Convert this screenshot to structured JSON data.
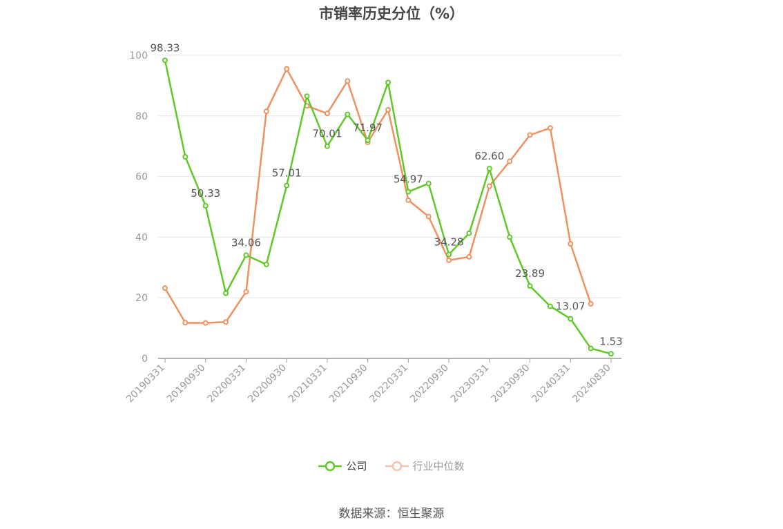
{
  "title": "市销率历史分位（%）",
  "source": "数据来源：恒生聚源",
  "chart_data": {
    "type": "line",
    "title": "市销率历史分位（%）",
    "ylim": [
      0,
      100
    ],
    "yticks": [
      0,
      20,
      40,
      60,
      80,
      100
    ],
    "x": [
      "20190331",
      "20190630",
      "20190930",
      "20191231",
      "20200331",
      "20200630",
      "20200930",
      "20201231",
      "20210331",
      "20210630",
      "20210930",
      "20211231",
      "20220331",
      "20220630",
      "20220930",
      "20221231",
      "20230331",
      "20230630",
      "20230930",
      "20231231",
      "20240331",
      "20240630",
      "20240830"
    ],
    "xticks": [
      "20190331",
      "20190930",
      "20200331",
      "20200930",
      "20210331",
      "20210930",
      "20220331",
      "20220930",
      "20230331",
      "20230930",
      "20240331",
      "20240830"
    ],
    "grid": true,
    "legend_position": "bottom",
    "series": [
      {
        "name": "公司",
        "color": "#5ec827",
        "values": [
          98.33,
          66.5,
          50.33,
          21.5,
          34.06,
          31.0,
          57.01,
          86.5,
          70.01,
          80.5,
          71.97,
          91.0,
          54.97,
          57.7,
          34.28,
          41.3,
          62.6,
          40.0,
          23.89,
          17.2,
          13.07,
          3.3,
          1.53
        ],
        "labels": {
          "0": "98.33",
          "2": "50.33",
          "4": "34.06",
          "6": "57.01",
          "8": "70.01",
          "10": "71.97",
          "12": "54.97",
          "14": "34.28",
          "16": "62.60",
          "18": "23.89",
          "20": "13.07",
          "22": "1.53"
        }
      },
      {
        "name": "行业中位数",
        "color": "#f0905e",
        "values": [
          23.2,
          11.8,
          11.7,
          12.0,
          22.0,
          81.5,
          95.5,
          83.3,
          80.8,
          91.5,
          71.3,
          82.0,
          52.2,
          46.8,
          32.4,
          33.5,
          56.8,
          65.0,
          73.7,
          76.0,
          37.8,
          18.0,
          null
        ]
      }
    ]
  }
}
